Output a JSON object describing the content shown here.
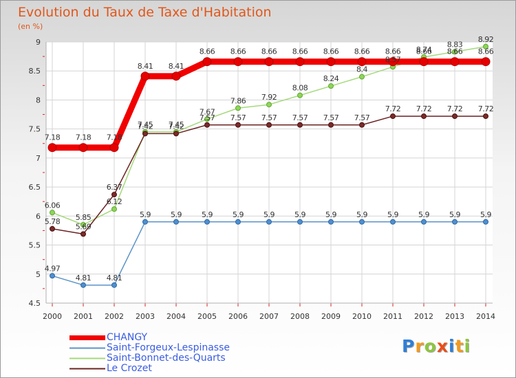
{
  "chart_data": {
    "type": "line",
    "title": "Evolution du Taux de Taxe d'Habitation",
    "ylabel": "(en %)",
    "xlabel": "",
    "ylim": [
      4.5,
      9
    ],
    "yticks": [
      "4.5",
      "5",
      "5.5",
      "6",
      "6.5",
      "7",
      "7.5",
      "8",
      "8.5",
      "9"
    ],
    "x": [
      "2000",
      "2001",
      "2002",
      "2003",
      "2004",
      "2005",
      "2006",
      "2007",
      "2008",
      "2009",
      "2010",
      "2011",
      "2012",
      "2013",
      "2014"
    ],
    "series": [
      {
        "name": "CHANGY",
        "color": "#f10000",
        "values": [
          7.18,
          7.18,
          7.18,
          8.41,
          8.41,
          8.66,
          8.66,
          8.66,
          8.66,
          8.66,
          8.66,
          8.66,
          8.66,
          8.66,
          8.66
        ],
        "labels": [
          "7.18",
          "7.18",
          "7.18",
          "8.41",
          "8.41",
          "8.66",
          "8.66",
          "8.66",
          "8.66",
          "8.66",
          "8.66",
          "8.66",
          "8.66",
          "8.66",
          "8.66"
        ]
      },
      {
        "name": "Saint-Forgeux-Lespinasse",
        "color": "#5b93c8",
        "values": [
          4.97,
          4.81,
          4.81,
          5.9,
          5.9,
          5.9,
          5.9,
          5.9,
          5.9,
          5.9,
          5.9,
          5.9,
          5.9,
          5.9,
          5.9
        ],
        "labels": [
          "4.97",
          "4.81",
          "4.81",
          "5.9",
          "5.9",
          "5.9",
          "5.9",
          "5.9",
          "5.9",
          "5.9",
          "5.9",
          "5.9",
          "5.9",
          "5.9",
          "5.9"
        ]
      },
      {
        "name": "Saint-Bonnet-des-Quarts",
        "color": "#a4d97b",
        "values": [
          6.06,
          5.85,
          6.12,
          7.45,
          7.45,
          7.67,
          7.86,
          7.92,
          8.08,
          8.24,
          8.4,
          8.57,
          8.74,
          8.83,
          8.92
        ],
        "labels": [
          "6.06",
          "5.85",
          "6.12",
          "7.45",
          "7.45",
          "7.67",
          "7.86",
          "7.92",
          "8.08",
          "8.24",
          "8.4",
          "8.57",
          "8.74",
          "8.83",
          "8.92"
        ]
      },
      {
        "name": "Le Crozet",
        "color": "#6b2222",
        "values": [
          5.78,
          5.69,
          6.37,
          7.42,
          7.42,
          7.57,
          7.57,
          7.57,
          7.57,
          7.57,
          7.57,
          7.72,
          7.72,
          7.72,
          7.72
        ],
        "labels": [
          "5.78",
          "5.69",
          "6.37",
          "7.42",
          "7.42",
          "7.57",
          "7.57",
          "7.57",
          "7.57",
          "7.57",
          "7.57",
          "7.72",
          "7.72",
          "7.72",
          "7.72"
        ]
      }
    ]
  },
  "legend": {
    "items": [
      "CHANGY",
      "Saint-Forgeux-Lespinasse",
      "Saint-Bonnet-des-Quarts",
      "Le Crozet"
    ]
  },
  "logo": {
    "text": "Proxiti",
    "letters": [
      "P",
      "r",
      "o",
      "x",
      "i",
      "t",
      "i"
    ]
  }
}
